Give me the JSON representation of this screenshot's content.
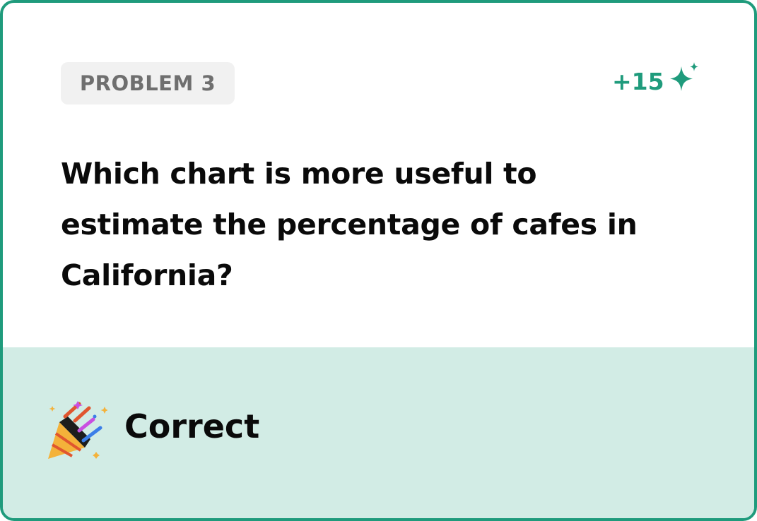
{
  "problem": {
    "badge_label": "PROBLEM 3",
    "points_label": "+15",
    "question_text": "Which chart is more useful to estimate the percentage of cafes in California?"
  },
  "result": {
    "label": "Correct",
    "icon": "party-popper-icon"
  },
  "colors": {
    "accent": "#1f9b7c",
    "result_background": "#d2ece5",
    "badge_background": "#f1f1f1",
    "badge_text": "#6f6f6f"
  }
}
